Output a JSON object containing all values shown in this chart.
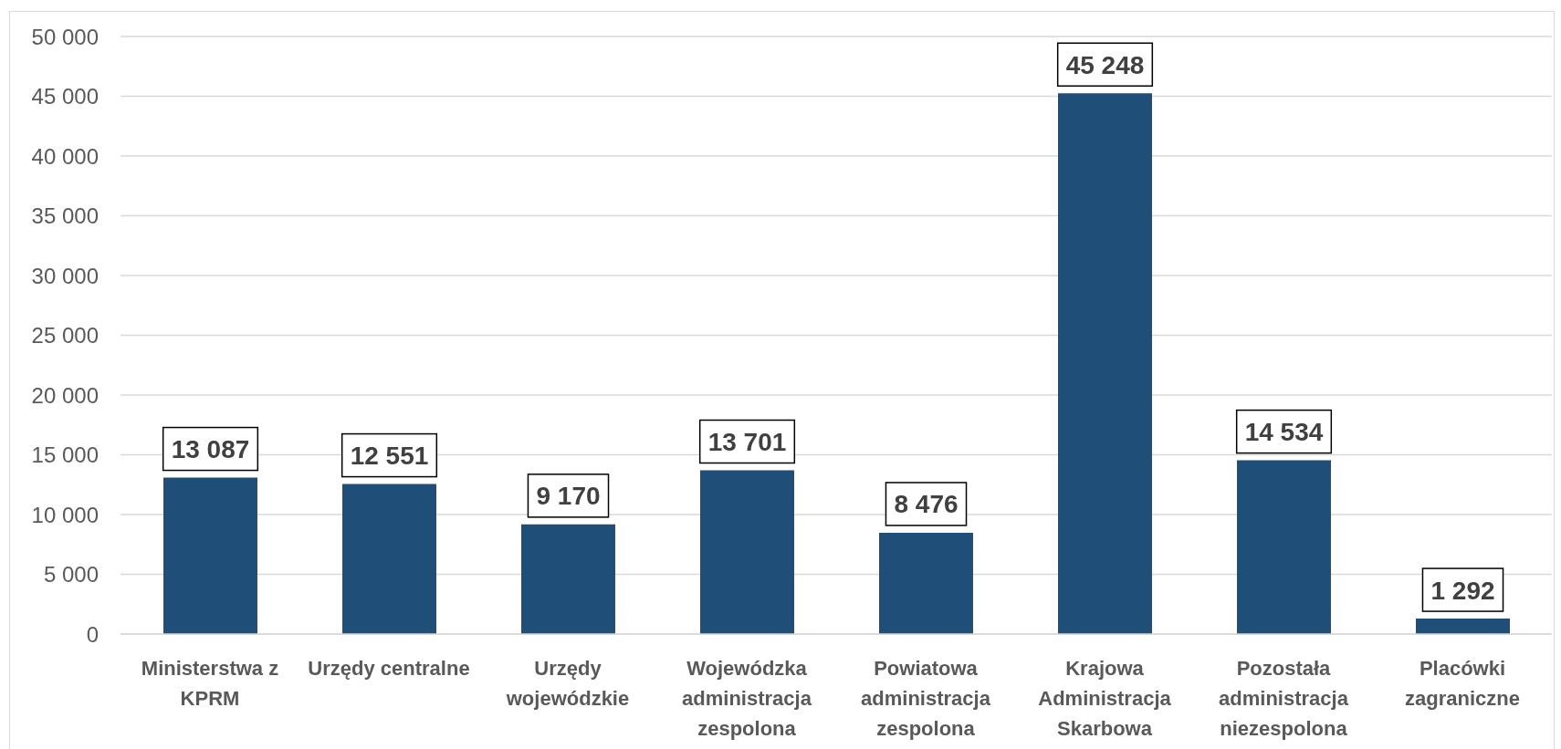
{
  "chart_data": {
    "type": "bar",
    "categories": [
      "Ministerstwa z KPRM",
      "Urzędy centralne",
      "Urzędy wojewódzkie",
      "Wojewódzka administracja zespolona",
      "Powiatowa administracja zespolona",
      "Krajowa Administracja Skarbowa",
      "Pozostała administracja niezespolona",
      "Placówki zagraniczne"
    ],
    "values": [
      13087,
      12551,
      9170,
      13701,
      8476,
      45248,
      14534,
      1292
    ],
    "value_labels": [
      "13 087",
      "12 551",
      "9 170",
      "13 701",
      "8 476",
      "45 248",
      "14 534",
      "1 292"
    ],
    "color": "#1f4e79",
    "ylim": [
      0,
      50000
    ],
    "yticks": [
      0,
      {
        "value": 5000,
        "label": "5 000"
      },
      {
        "value": 10000,
        "label": "10 000"
      },
      {
        "value": 15000,
        "label": "15 000"
      },
      {
        "value": 20000,
        "label": "20 000"
      },
      {
        "value": 25000,
        "label": "25 000"
      },
      {
        "value": 30000,
        "label": "30 000"
      },
      {
        "value": 35000,
        "label": "35 000"
      },
      {
        "value": 40000,
        "label": "40 000"
      },
      {
        "value": 45000,
        "label": "45 000"
      },
      {
        "value": 50000,
        "label": "50 000"
      }
    ],
    "grid": "y"
  }
}
